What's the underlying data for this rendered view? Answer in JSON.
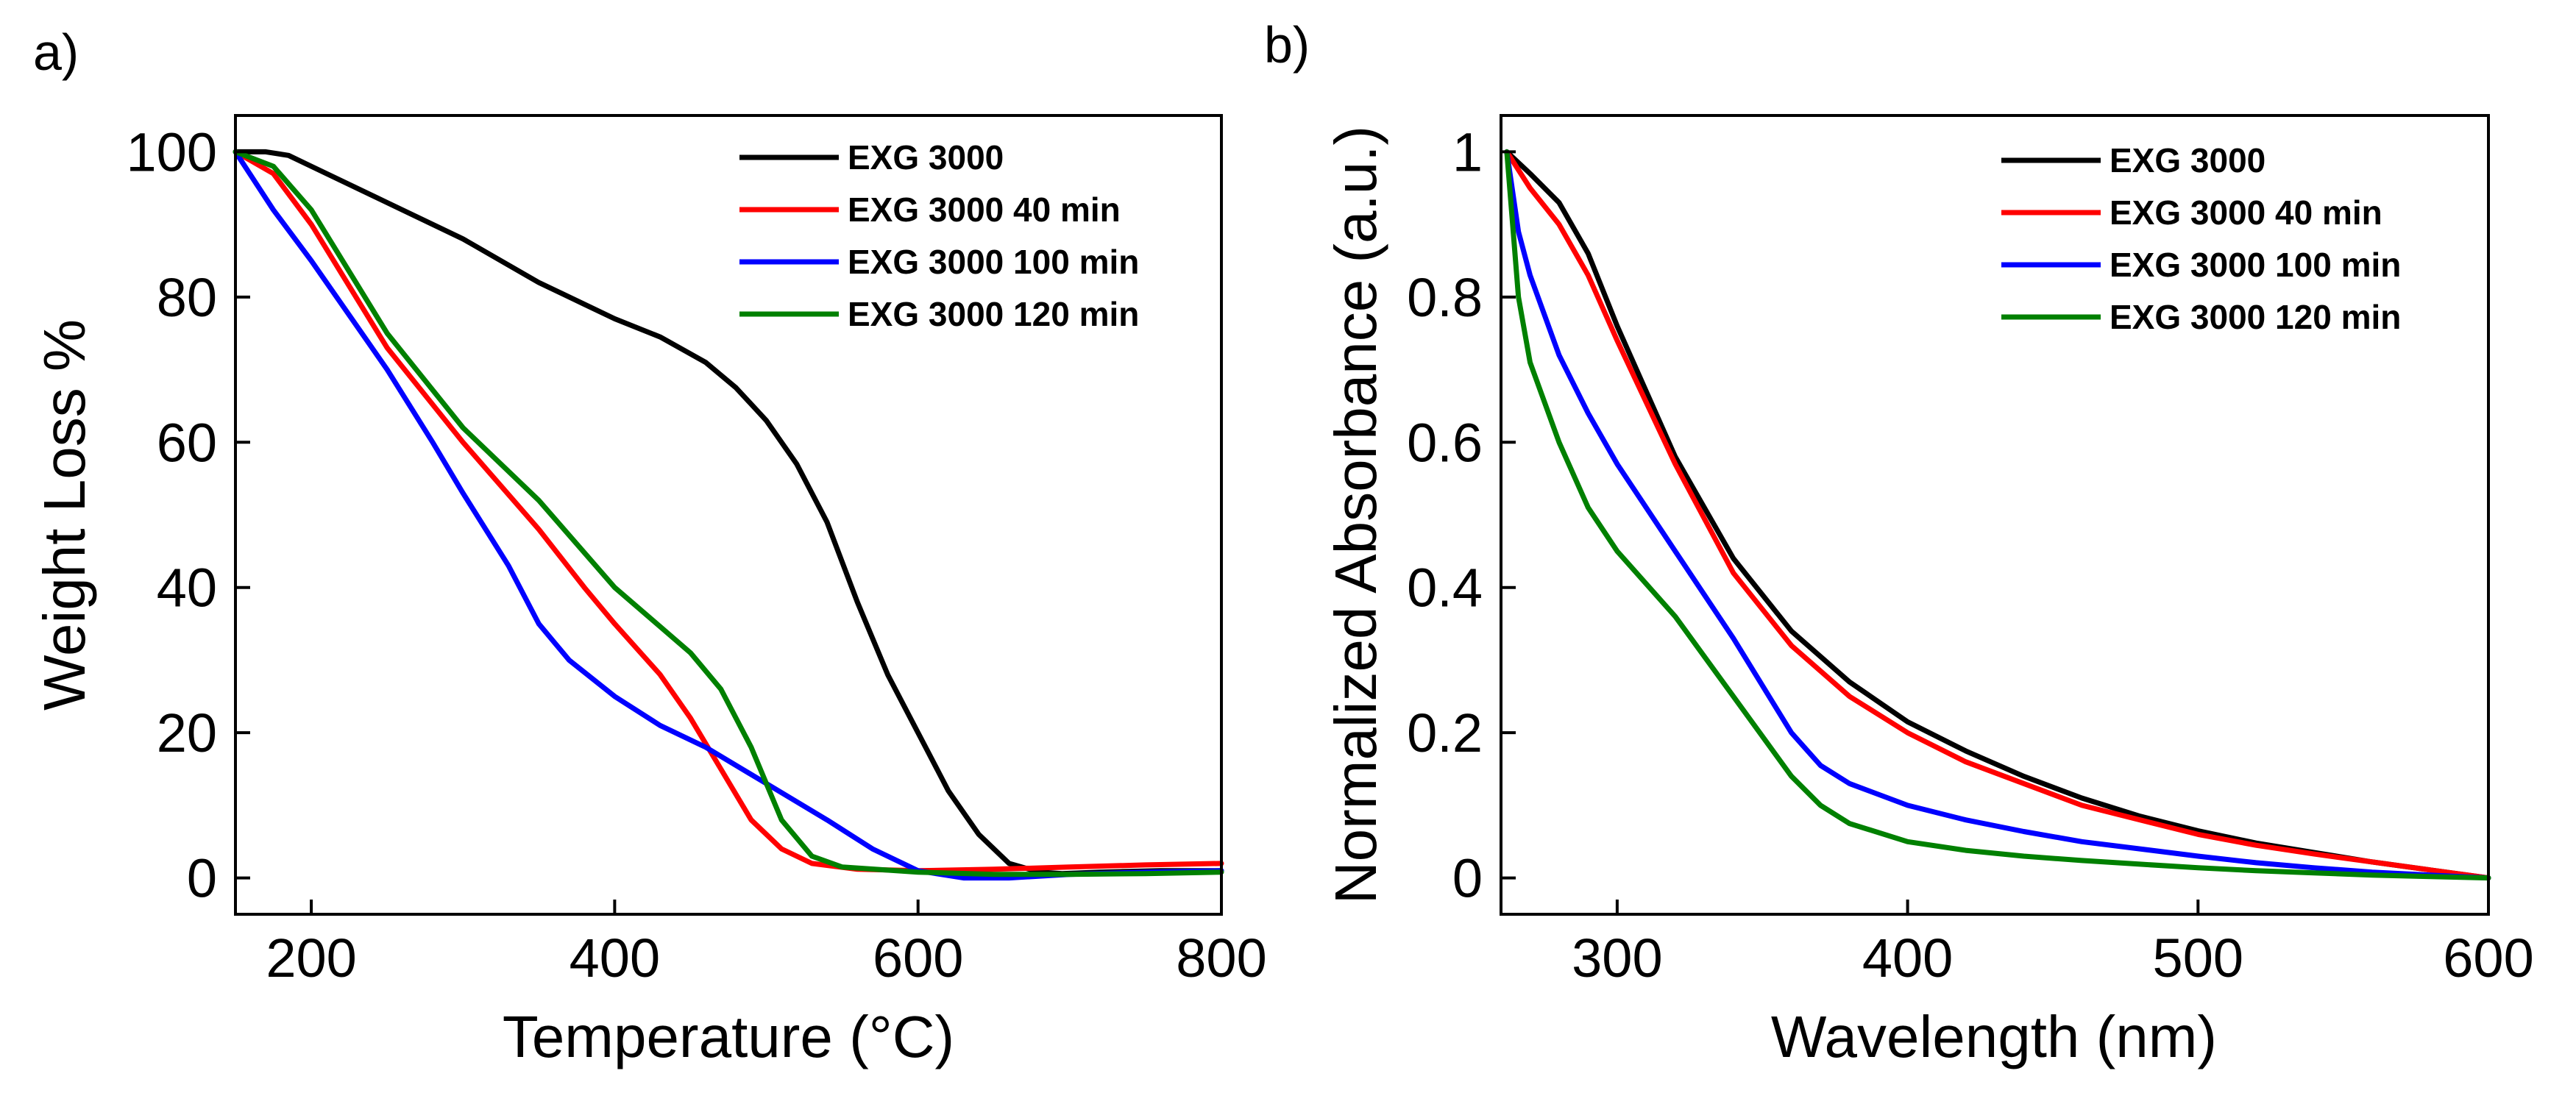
{
  "chart_data": [
    {
      "type": "line",
      "panel_label": "a)",
      "title": "",
      "xlabel": "Temperature (°C)",
      "ylabel": "Weight Loss %",
      "xlim": [
        150,
        800
      ],
      "ylim": [
        -5,
        105
      ],
      "xticks": [
        200,
        400,
        600,
        800
      ],
      "yticks": [
        0,
        20,
        40,
        60,
        80,
        100
      ],
      "legend_position": "top-right",
      "series": [
        {
          "name": "EXG 3000",
          "color": "#000000",
          "x": [
            150,
            170,
            185,
            200,
            250,
            300,
            350,
            380,
            400,
            430,
            460,
            480,
            500,
            520,
            540,
            560,
            580,
            600,
            620,
            640,
            660,
            680,
            695,
            720,
            760,
            800
          ],
          "y": [
            100,
            100,
            99.5,
            98,
            93,
            88,
            82,
            79,
            77,
            74.5,
            71,
            67.5,
            63,
            57,
            49,
            38,
            28,
            20,
            12,
            6,
            2,
            0.8,
            0.6,
            0.8,
            1,
            1
          ]
        },
        {
          "name": "EXG 3000 40 min",
          "color": "#ff0000",
          "x": [
            150,
            175,
            200,
            250,
            300,
            350,
            380,
            400,
            430,
            450,
            470,
            490,
            510,
            530,
            560,
            600,
            650,
            700,
            750,
            800
          ],
          "y": [
            100,
            97,
            90,
            73,
            60,
            48,
            40,
            35,
            28,
            22,
            15,
            8,
            4,
            2,
            1.2,
            1,
            1.2,
            1.5,
            1.8,
            2
          ]
        },
        {
          "name": "EXG 3000 100 min",
          "color": "#0000ff",
          "x": [
            150,
            175,
            200,
            250,
            280,
            300,
            330,
            350,
            370,
            400,
            430,
            460,
            500,
            540,
            570,
            600,
            630,
            660,
            700,
            750,
            800
          ],
          "y": [
            100,
            92,
            85,
            70,
            60,
            53,
            43,
            35,
            30,
            25,
            21,
            18,
            13,
            8,
            4,
            1,
            0,
            0,
            0.5,
            0.8,
            1
          ]
        },
        {
          "name": "EXG 3000 120 min",
          "color": "#008000",
          "x": [
            150,
            175,
            200,
            250,
            300,
            350,
            400,
            450,
            470,
            490,
            510,
            530,
            550,
            600,
            650,
            700,
            750,
            800
          ],
          "y": [
            100,
            98,
            92,
            75,
            62,
            52,
            40,
            31,
            26,
            18,
            8,
            3,
            1.5,
            0.8,
            0.5,
            0.5,
            0.6,
            0.8
          ]
        }
      ]
    },
    {
      "type": "line",
      "panel_label": "b)",
      "title": "",
      "xlabel": "Wavelength (nm)",
      "ylabel": "Normalized Absorbance (a.u.)",
      "xlim": [
        260,
        600
      ],
      "ylim": [
        -0.05,
        1.05
      ],
      "xticks": [
        300,
        400,
        500,
        600
      ],
      "yticks": [
        0,
        0.2,
        0.4,
        0.6,
        0.8,
        1
      ],
      "ytick_labels": [
        "0",
        "0.2",
        "0.4",
        "0.6",
        "0.8",
        "1"
      ],
      "legend_position": "top-right",
      "series": [
        {
          "name": "EXG 3000",
          "color": "#000000",
          "x": [
            262,
            270,
            280,
            290,
            300,
            320,
            340,
            360,
            380,
            400,
            420,
            440,
            460,
            480,
            500,
            520,
            540,
            560,
            580,
            600
          ],
          "y": [
            1,
            0.97,
            0.93,
            0.86,
            0.76,
            0.58,
            0.44,
            0.34,
            0.27,
            0.215,
            0.175,
            0.14,
            0.11,
            0.085,
            0.065,
            0.048,
            0.035,
            0.022,
            0.011,
            0
          ]
        },
        {
          "name": "EXG 3000 40 min",
          "color": "#ff0000",
          "x": [
            262,
            270,
            280,
            290,
            300,
            320,
            340,
            360,
            380,
            400,
            420,
            440,
            460,
            480,
            500,
            520,
            540,
            560,
            580,
            600
          ],
          "y": [
            1,
            0.95,
            0.9,
            0.83,
            0.74,
            0.57,
            0.42,
            0.32,
            0.25,
            0.2,
            0.16,
            0.13,
            0.1,
            0.08,
            0.06,
            0.045,
            0.033,
            0.022,
            0.011,
            0
          ]
        },
        {
          "name": "EXG 3000 100 min",
          "color": "#0000ff",
          "x": [
            262,
            266,
            270,
            280,
            290,
            300,
            320,
            340,
            360,
            370,
            380,
            400,
            420,
            440,
            460,
            480,
            500,
            520,
            540,
            560,
            580,
            600
          ],
          "y": [
            1,
            0.89,
            0.83,
            0.72,
            0.64,
            0.57,
            0.45,
            0.33,
            0.2,
            0.155,
            0.13,
            0.1,
            0.08,
            0.064,
            0.05,
            0.04,
            0.03,
            0.021,
            0.014,
            0.008,
            0.004,
            0
          ]
        },
        {
          "name": "EXG 3000 120 min",
          "color": "#008000",
          "x": [
            262,
            266,
            270,
            280,
            290,
            300,
            320,
            340,
            360,
            370,
            380,
            400,
            420,
            440,
            460,
            480,
            500,
            520,
            540,
            560,
            580,
            600
          ],
          "y": [
            1,
            0.8,
            0.71,
            0.6,
            0.51,
            0.45,
            0.36,
            0.25,
            0.14,
            0.1,
            0.075,
            0.05,
            0.038,
            0.03,
            0.024,
            0.019,
            0.014,
            0.01,
            0.007,
            0.004,
            0.002,
            0
          ]
        }
      ]
    }
  ]
}
